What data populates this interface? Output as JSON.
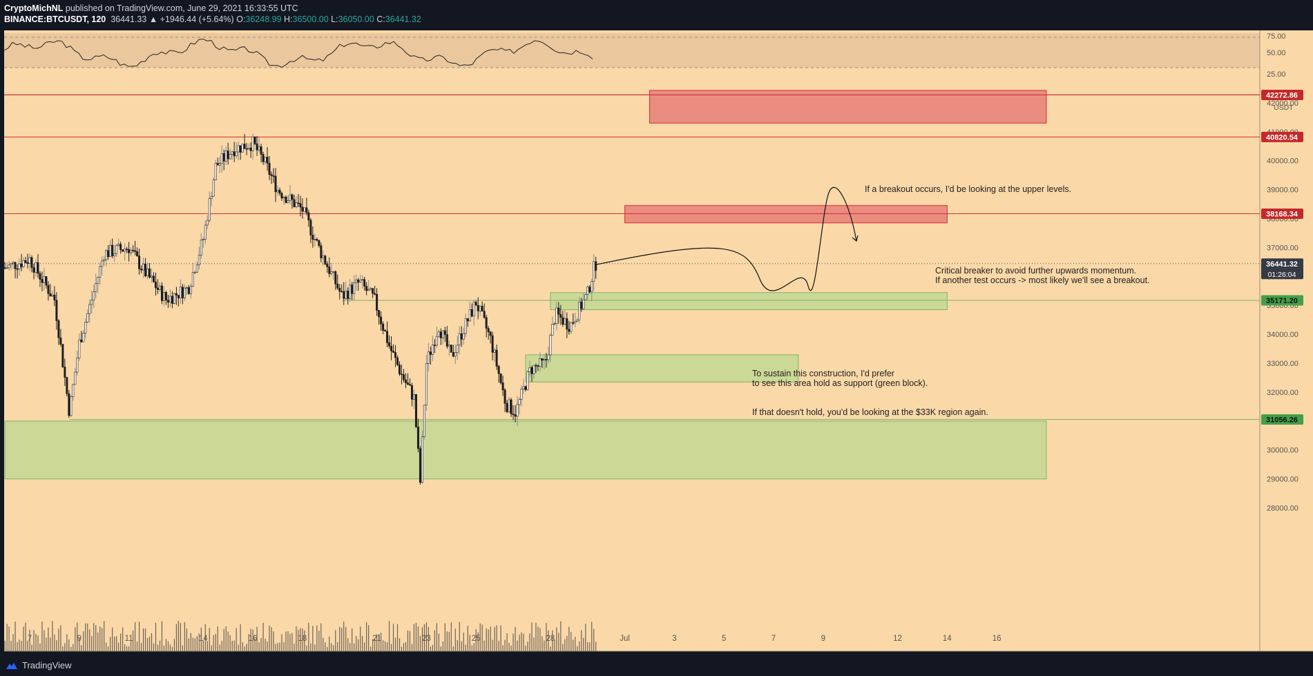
{
  "header": {
    "author": "CryptoMichNL",
    "published": "published on TradingView.com, June 29, 2021 16:33:55 UTC",
    "symbol": "BINANCE:BTCUSDT, 120",
    "last": "36441.33",
    "change": "▲ +1946.44 (+5.64%)",
    "o_label": "O:",
    "o": "36248.99",
    "h_label": "H:",
    "h": "36500.00",
    "l_label": "L:",
    "l": "36050.00",
    "c_label": "C:",
    "c": "36441.32"
  },
  "footer": {
    "brand": "TradingView",
    "logo_icon": "tradingview-logo-icon"
  },
  "colors": {
    "background": "#fad8a8",
    "red_line": "#d32f2f",
    "red_zone": "#e57373",
    "green_zone": "#b6d98f",
    "candle": "#1e1e1e",
    "label_red": "#c62828",
    "label_green": "#43a047",
    "label_dark": "#363a45"
  },
  "chart_data": {
    "type": "candlestick",
    "ylim": [
      27500,
      43000
    ],
    "currency_label": "USDT",
    "y_ticks": [
      "28000.00",
      "29000.00",
      "30000.00",
      "31000.00",
      "32000.00",
      "33000.00",
      "34000.00",
      "35000.00",
      "36000.00",
      "37000.00",
      "38000.00",
      "39000.00",
      "40000.00",
      "41000.00",
      "42000.00"
    ],
    "x_ticks": [
      "7",
      "9",
      "11",
      "14",
      "16",
      "18",
      "21",
      "23",
      "25",
      "28",
      "Jul",
      "3",
      "5",
      "7",
      "9",
      "12",
      "14",
      "16"
    ],
    "rsi_ticks": [
      "75.00",
      "50.00",
      "25.00"
    ],
    "price_labels": [
      {
        "text": "42272.86",
        "value": 42272.86,
        "kind": "red"
      },
      {
        "text": "40820.54",
        "value": 40820.54,
        "kind": "red"
      },
      {
        "text": "38168.34",
        "value": 38168.34,
        "kind": "red"
      },
      {
        "text": "36441.32",
        "value": 36441.32,
        "kind": "dark",
        "sub": "01:26:04"
      },
      {
        "text": "35171.20",
        "value": 35171.2,
        "kind": "green"
      },
      {
        "text": "31056.26",
        "value": 31056.26,
        "kind": "green"
      }
    ],
    "horizontal_lines": [
      42272.86,
      40820.54,
      38168.34
    ],
    "zones": [
      {
        "kind": "red",
        "x_from": "Jul 2",
        "x_to": "Jul 18",
        "y_from": 41300,
        "y_to": 42430
      },
      {
        "kind": "red",
        "x_from": "Jul 1",
        "x_to": "Jul 14",
        "y_from": 37850,
        "y_to": 38450
      },
      {
        "kind": "green",
        "x_from": "Jun 28",
        "x_to": "Jul 14",
        "y_from": 34850,
        "y_to": 35440
      },
      {
        "kind": "green",
        "x_from": "Jun 27",
        "x_to": "Jul 8",
        "y_from": 32350,
        "y_to": 33290
      },
      {
        "kind": "green",
        "x_from": "Jun 6",
        "x_to": "Jul 18",
        "y_from": 29000,
        "y_to": 31000
      }
    ],
    "annotations": [
      {
        "text": "If a breakout occurs, I'd be looking at the upper levels."
      },
      {
        "text": "Critical breaker to avoid further upwards momentum."
      },
      {
        "text": "If another test occurs -> most likely we'll see a breakout."
      },
      {
        "text": "To sustain this construction, I'd prefer"
      },
      {
        "text": "to see this area hold as support (green block)."
      },
      {
        "text": "If that doesn't hold, you'd be looking at the $33K region again."
      }
    ]
  }
}
